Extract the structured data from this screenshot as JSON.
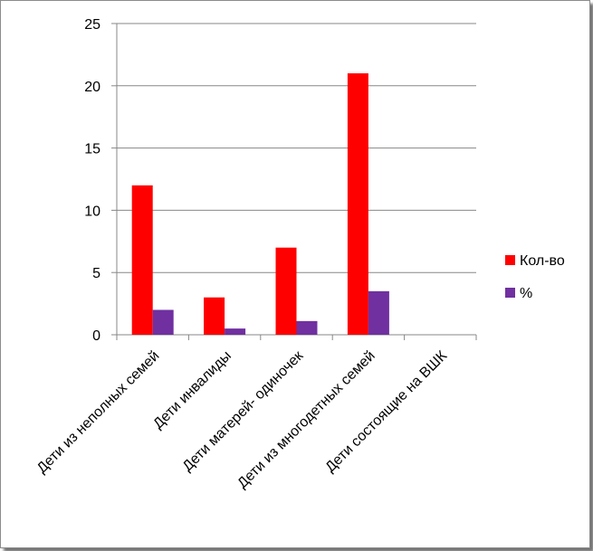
{
  "chart_data": {
    "type": "bar",
    "categories": [
      "Дети из неполных семей",
      "Дети инвалиды",
      "Дети матерей- одиночек",
      "Дети  из многодетных семей",
      "Дети  состоящие на ВШК"
    ],
    "series": [
      {
        "name": "Кол-во",
        "values": [
          12,
          3,
          7,
          21,
          0
        ],
        "color": "#ff0000"
      },
      {
        "name": "%",
        "values": [
          2,
          0.5,
          1.1,
          3.5,
          0
        ],
        "color": "#7030a0"
      }
    ],
    "yticks": [
      0,
      5,
      10,
      15,
      20,
      25
    ],
    "ylim": [
      0,
      25
    ],
    "grid": true,
    "legend": "right"
  }
}
